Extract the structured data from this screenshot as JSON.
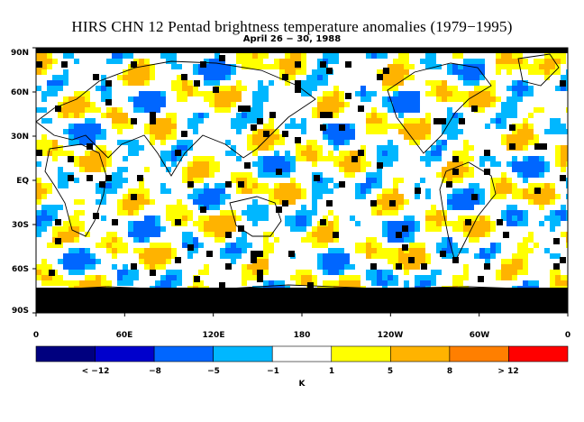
{
  "title": "HIRS CHN 12 Pentad brightness temperature anomalies (1979−1995)",
  "subtitle": "April 26 − 30, 1988",
  "y_ticks": [
    "90N",
    "60N",
    "30N",
    "EQ",
    "30S",
    "60S",
    "90S"
  ],
  "x_ticks": [
    "0",
    "60E",
    "120E",
    "180",
    "120W",
    "60W",
    "0"
  ],
  "colorbar": {
    "colors": [
      "#00007f",
      "#0000cc",
      "#0066ff",
      "#00b7ff",
      "#ffffff",
      "#ffff00",
      "#ffb300",
      "#ff7f00",
      "#ff0000"
    ],
    "labels": [
      "< −12",
      "−8",
      "−5",
      "−1",
      "1",
      "5",
      "8",
      "> 12"
    ],
    "unit": "K"
  },
  "legend": {
    "missing_data_color": "#000000"
  }
}
